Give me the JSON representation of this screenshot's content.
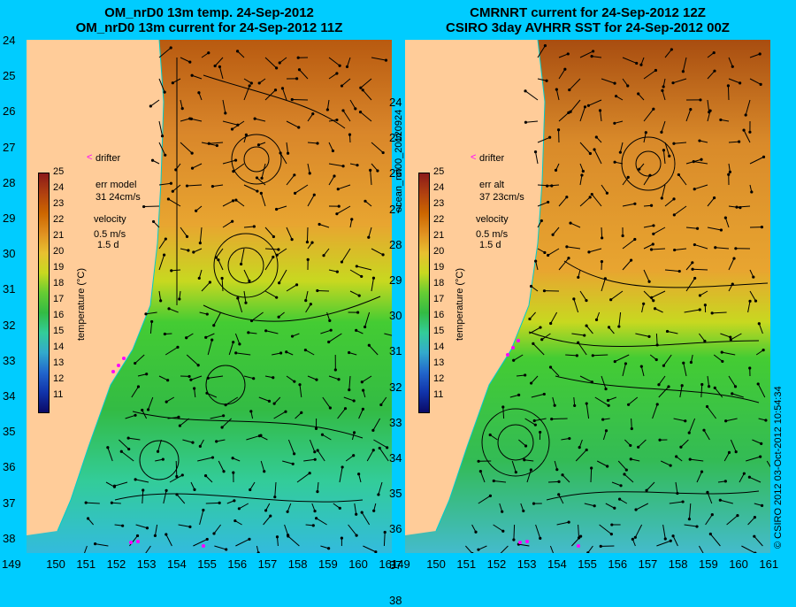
{
  "left_panel": {
    "title_line1": "OM_nrD0 13m temp. 24-Sep-2012",
    "title_line2": "OM_nrD0 13m current for 24-Sep-2012 11Z",
    "drifter_label": "drifter",
    "err_line1": "err model",
    "err_line2": "31 24cm/s",
    "velocity_label": "velocity",
    "velocity_scale": "0.5 m/s",
    "velocity_time": "1.5 d",
    "colorbar_label": "temperature (°C)"
  },
  "right_panel": {
    "title_line1": "CMRNRT current for 24-Sep-2012 12Z",
    "title_line2": "CSIRO 3day AVHRR SST for 24-Sep-2012 00Z",
    "drifter_label": "drifter",
    "err_line1": "err alt",
    "err_line2": "37 23cm/s",
    "velocity_label": "velocity",
    "velocity_scale": "0.5 m/s",
    "velocity_time": "1.5 d",
    "colorbar_label": "temperature (°C)"
  },
  "side_labels": {
    "run_id": "ocean_nrt00_20120924",
    "credit": "© CSIRO 2012   03-Oct-2012 10:54:34"
  },
  "y_ticks": [
    "24",
    "25",
    "26",
    "27",
    "28",
    "29",
    "30",
    "31",
    "32",
    "33",
    "34",
    "35",
    "36",
    "37",
    "38"
  ],
  "x_ticks": [
    "149",
    "150",
    "151",
    "152",
    "153",
    "154",
    "155",
    "156",
    "157",
    "158",
    "159",
    "160",
    "161"
  ],
  "colorbar_ticks": [
    "25",
    "24",
    "23",
    "22",
    "21",
    "20",
    "19",
    "18",
    "17",
    "16",
    "15",
    "14",
    "13",
    "12",
    "11"
  ],
  "colors": {
    "background": "#00ccff",
    "land": "#ffcc99",
    "warm": "#cc6600",
    "mid": "#e8a020",
    "cool": "#33cc33",
    "cold": "#33cccc",
    "drifter": "#ff00ff",
    "coastline": "#00cccc"
  }
}
